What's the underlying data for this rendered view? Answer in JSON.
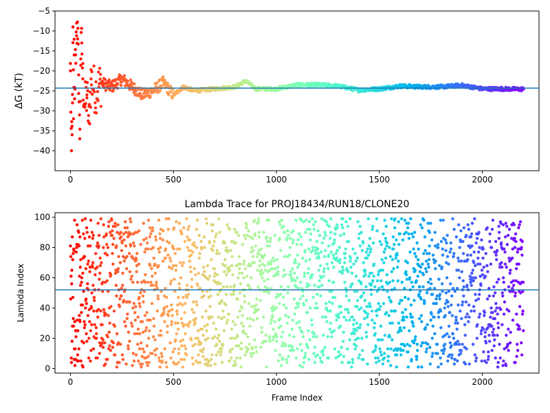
{
  "chart_data": [
    {
      "type": "scatter",
      "title": "",
      "xlabel": "",
      "ylabel": "ΔG (kT)",
      "xlim": [
        -75,
        2275
      ],
      "ylim": [
        -45,
        -5
      ],
      "xticks": [
        0,
        500,
        1000,
        1500,
        2000
      ],
      "yticks": [
        -40,
        -35,
        -30,
        -25,
        -20,
        -15,
        -10,
        -5
      ],
      "grid": false,
      "color_map": "rainbow (red at start → violet at end)",
      "hline": {
        "y": -24.3,
        "color": "#1f77b4"
      },
      "points_sampled": {
        "x": [
          0,
          5,
          8,
          10,
          12,
          15,
          18,
          20,
          25,
          30,
          35,
          40,
          45,
          50,
          55,
          60,
          70,
          80,
          90,
          100,
          120,
          150,
          200,
          250,
          300,
          350,
          400,
          450,
          500,
          550,
          600,
          700,
          800,
          850,
          900,
          1000,
          1100,
          1200,
          1300,
          1400,
          1500,
          1600,
          1700,
          1800,
          1900,
          2000,
          2100,
          2200
        ],
        "y": [
          -20,
          -40,
          -36,
          -28,
          -9,
          -32,
          -16,
          -27,
          -16,
          -8,
          -12,
          -21,
          -37,
          -17,
          -13,
          -22,
          -29,
          -26,
          -33,
          -22,
          -25,
          -23,
          -24,
          -22,
          -24,
          -26,
          -25,
          -23,
          -26,
          -24,
          -25,
          -24.5,
          -24,
          -22.5,
          -24.5,
          -24.5,
          -23.5,
          -23.5,
          -23.8,
          -24.8,
          -24.5,
          -23.8,
          -24,
          -24,
          -23.6,
          -24.5,
          -24.5,
          -24.6
        ]
      }
    },
    {
      "type": "scatter",
      "title": "Lambda Trace for PROJ18434/RUN18/CLONE20",
      "xlabel": "Frame Index",
      "ylabel": "Lambda Index",
      "xlim": [
        -75,
        2275
      ],
      "ylim": [
        -3,
        103
      ],
      "xticks": [
        0,
        500,
        1000,
        1500,
        2000
      ],
      "yticks": [
        0,
        20,
        40,
        60,
        80,
        100
      ],
      "grid": false,
      "color_map": "rainbow (red at start → violet at end)",
      "hline": {
        "y": 52,
        "color": "#1f77b4"
      },
      "n_points": 2200,
      "value_range": [
        1,
        99
      ],
      "distribution": "roughly uniform random lambda indices across frames"
    }
  ]
}
